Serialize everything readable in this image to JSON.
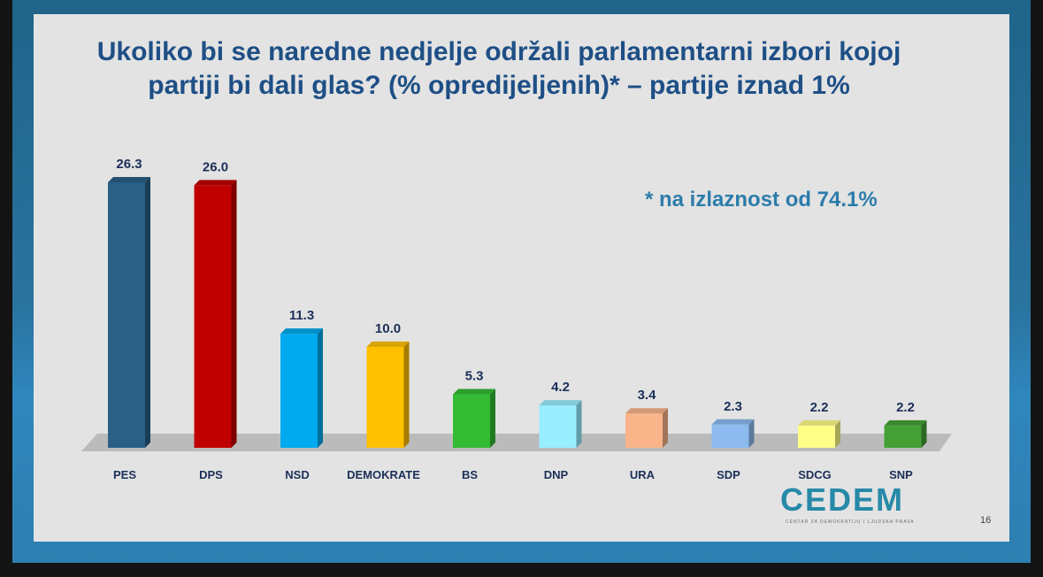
{
  "slide": {
    "title_line1": "Ukoliko bi se naredne nedjelje održali parlamentarni izbori kojoj",
    "title_line2": "partiji bi dali glas? (% opredijeljenih)* – partije iznad 1%",
    "note": "* na izlaznost od 74.1%",
    "logo": "CEDEM",
    "logo_subtitle": "CENTAR ZA DEMOKRATIJU I LJUDSKA PRAVA",
    "page_number": "16"
  },
  "chart_data": {
    "type": "bar",
    "title": "Ukoliko bi se naredne nedjelje održali parlamentarni izbori kojoj partiji bi dali glas? (% opredijeljenih)* – partije iznad 1%",
    "categories": [
      "PES",
      "DPS",
      "NSD",
      "DEMOKRATE",
      "BS",
      "DNP",
      "URA",
      "SDP",
      "SDCG",
      "SNP"
    ],
    "values": [
      26.3,
      26.0,
      11.3,
      10.0,
      5.3,
      4.2,
      3.4,
      2.3,
      2.2,
      2.2
    ],
    "labels": [
      "26.3",
      "26.0",
      "11.3",
      "10.0",
      "5.3",
      "4.2",
      "3.4",
      "2.3",
      "2.2",
      "2.2"
    ],
    "colors": [
      "#2a5f86",
      "#c00000",
      "#00aaee",
      "#ffc000",
      "#33bb33",
      "#99eeff",
      "#f9b48a",
      "#8dbbef",
      "#ffff88",
      "#44a035"
    ],
    "xlabel": "",
    "ylabel": "",
    "ylim": [
      0,
      26.3
    ],
    "grid": false,
    "legend": "none"
  }
}
